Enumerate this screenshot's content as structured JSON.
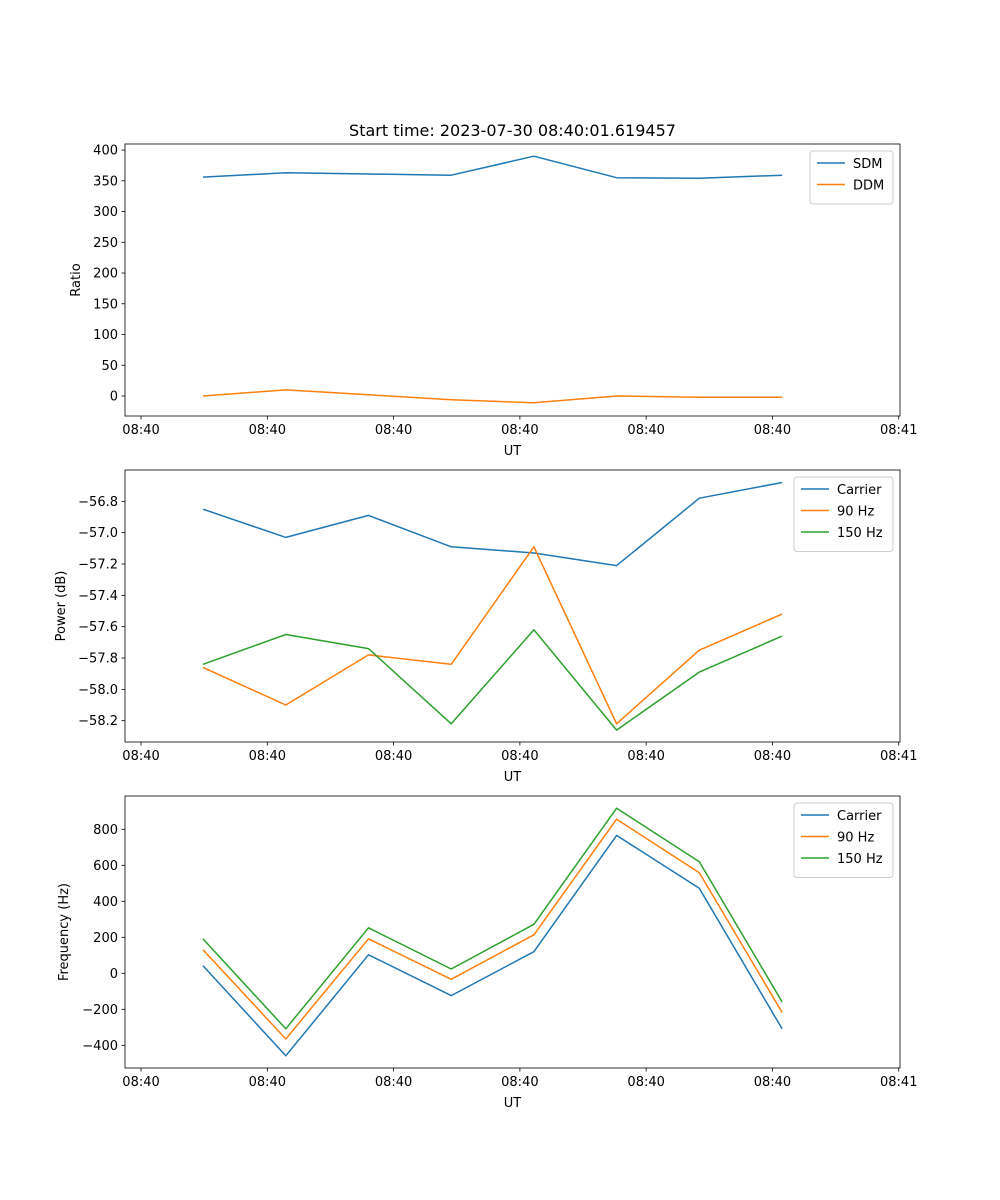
{
  "chart_data": [
    {
      "type": "line",
      "title": "Start time: 2023-07-30 08:40:01.619457",
      "xlabel": "UT",
      "ylabel": "Ratio",
      "x_seconds": [
        4.91,
        11.46,
        18.01,
        24.56,
        31.11,
        37.66,
        44.21,
        50.76
      ],
      "xlim": [
        -1.27,
        60.1
      ],
      "xticks": [
        0,
        10,
        20,
        30,
        40,
        50,
        60
      ],
      "xtick_labels": [
        "08:40",
        "08:40",
        "08:40",
        "08:40",
        "08:40",
        "08:40",
        "08:41"
      ],
      "ylim": [
        -32.5,
        409.8
      ],
      "yticks": [
        0,
        50,
        100,
        150,
        200,
        250,
        300,
        350,
        400
      ],
      "ytick_labels": [
        "0",
        "50",
        "100",
        "150",
        "200",
        "250",
        "300",
        "350",
        "400"
      ],
      "legend": "top-right",
      "series": [
        {
          "name": "SDM",
          "color": "#1f77b4",
          "values": [
            356,
            363,
            361,
            359,
            390,
            355,
            354,
            359
          ]
        },
        {
          "name": "DDM",
          "color": "#ff7f0e",
          "values": [
            0,
            10,
            2,
            -6,
            -11,
            0,
            -2,
            -2
          ]
        }
      ]
    },
    {
      "type": "line",
      "title": "",
      "xlabel": "UT",
      "ylabel": "Power (dB)",
      "x_seconds": [
        4.91,
        11.46,
        18.01,
        24.56,
        31.11,
        37.66,
        44.21,
        50.76
      ],
      "xlim": [
        -1.27,
        60.1
      ],
      "xticks": [
        0,
        10,
        20,
        30,
        40,
        50,
        60
      ],
      "xtick_labels": [
        "08:40",
        "08:40",
        "08:40",
        "08:40",
        "08:40",
        "08:40",
        "08:41"
      ],
      "ylim": [
        -58.336,
        -56.6
      ],
      "yticks": [
        -58.2,
        -58.0,
        -57.8,
        -57.6,
        -57.4,
        -57.2,
        -57.0,
        -56.8
      ],
      "ytick_labels": [
        "−58.2",
        "−58.0",
        "−57.8",
        "−57.6",
        "−57.4",
        "−57.2",
        "−57.0",
        "−56.8"
      ],
      "legend": "top-right",
      "series": [
        {
          "name": "Carrier",
          "color": "#1f77b4",
          "values": [
            -56.85,
            -57.03,
            -56.89,
            -57.09,
            -57.13,
            -57.21,
            -56.78,
            -56.68
          ]
        },
        {
          "name": "90 Hz",
          "color": "#ff7f0e",
          "values": [
            -57.86,
            -58.1,
            -57.78,
            -57.84,
            -57.09,
            -58.22,
            -57.75,
            -57.52
          ]
        },
        {
          "name": "150 Hz",
          "color": "#2ca02c",
          "values": [
            -57.84,
            -57.65,
            -57.74,
            -58.22,
            -57.62,
            -58.26,
            -57.89,
            -57.66
          ]
        }
      ]
    },
    {
      "type": "line",
      "title": "",
      "xlabel": "UT",
      "ylabel": "Frequency (Hz)",
      "x_seconds": [
        4.91,
        11.46,
        18.01,
        24.56,
        31.11,
        37.66,
        44.21,
        50.76
      ],
      "xlim": [
        -1.27,
        60.1
      ],
      "xticks": [
        0,
        10,
        20,
        30,
        40,
        50,
        60
      ],
      "xtick_labels": [
        "08:40",
        "08:40",
        "08:40",
        "08:40",
        "08:40",
        "08:40",
        "08:41"
      ],
      "ylim": [
        -526,
        985
      ],
      "yticks": [
        -400,
        -200,
        0,
        200,
        400,
        600,
        800
      ],
      "ytick_labels": [
        "−400",
        "−200",
        "0",
        "200",
        "400",
        "600",
        "800"
      ],
      "legend": "top-right",
      "series": [
        {
          "name": "Carrier",
          "color": "#1f77b4",
          "values": [
            42,
            -458,
            103,
            -124,
            120,
            766,
            472,
            -308
          ]
        },
        {
          "name": "90 Hz",
          "color": "#ff7f0e",
          "values": [
            131,
            -365,
            192,
            -33,
            214,
            856,
            559,
            -217
          ]
        },
        {
          "name": "150 Hz",
          "color": "#2ca02c",
          "values": [
            191,
            -308,
            253,
            24,
            272,
            917,
            620,
            -159
          ]
        }
      ]
    }
  ]
}
